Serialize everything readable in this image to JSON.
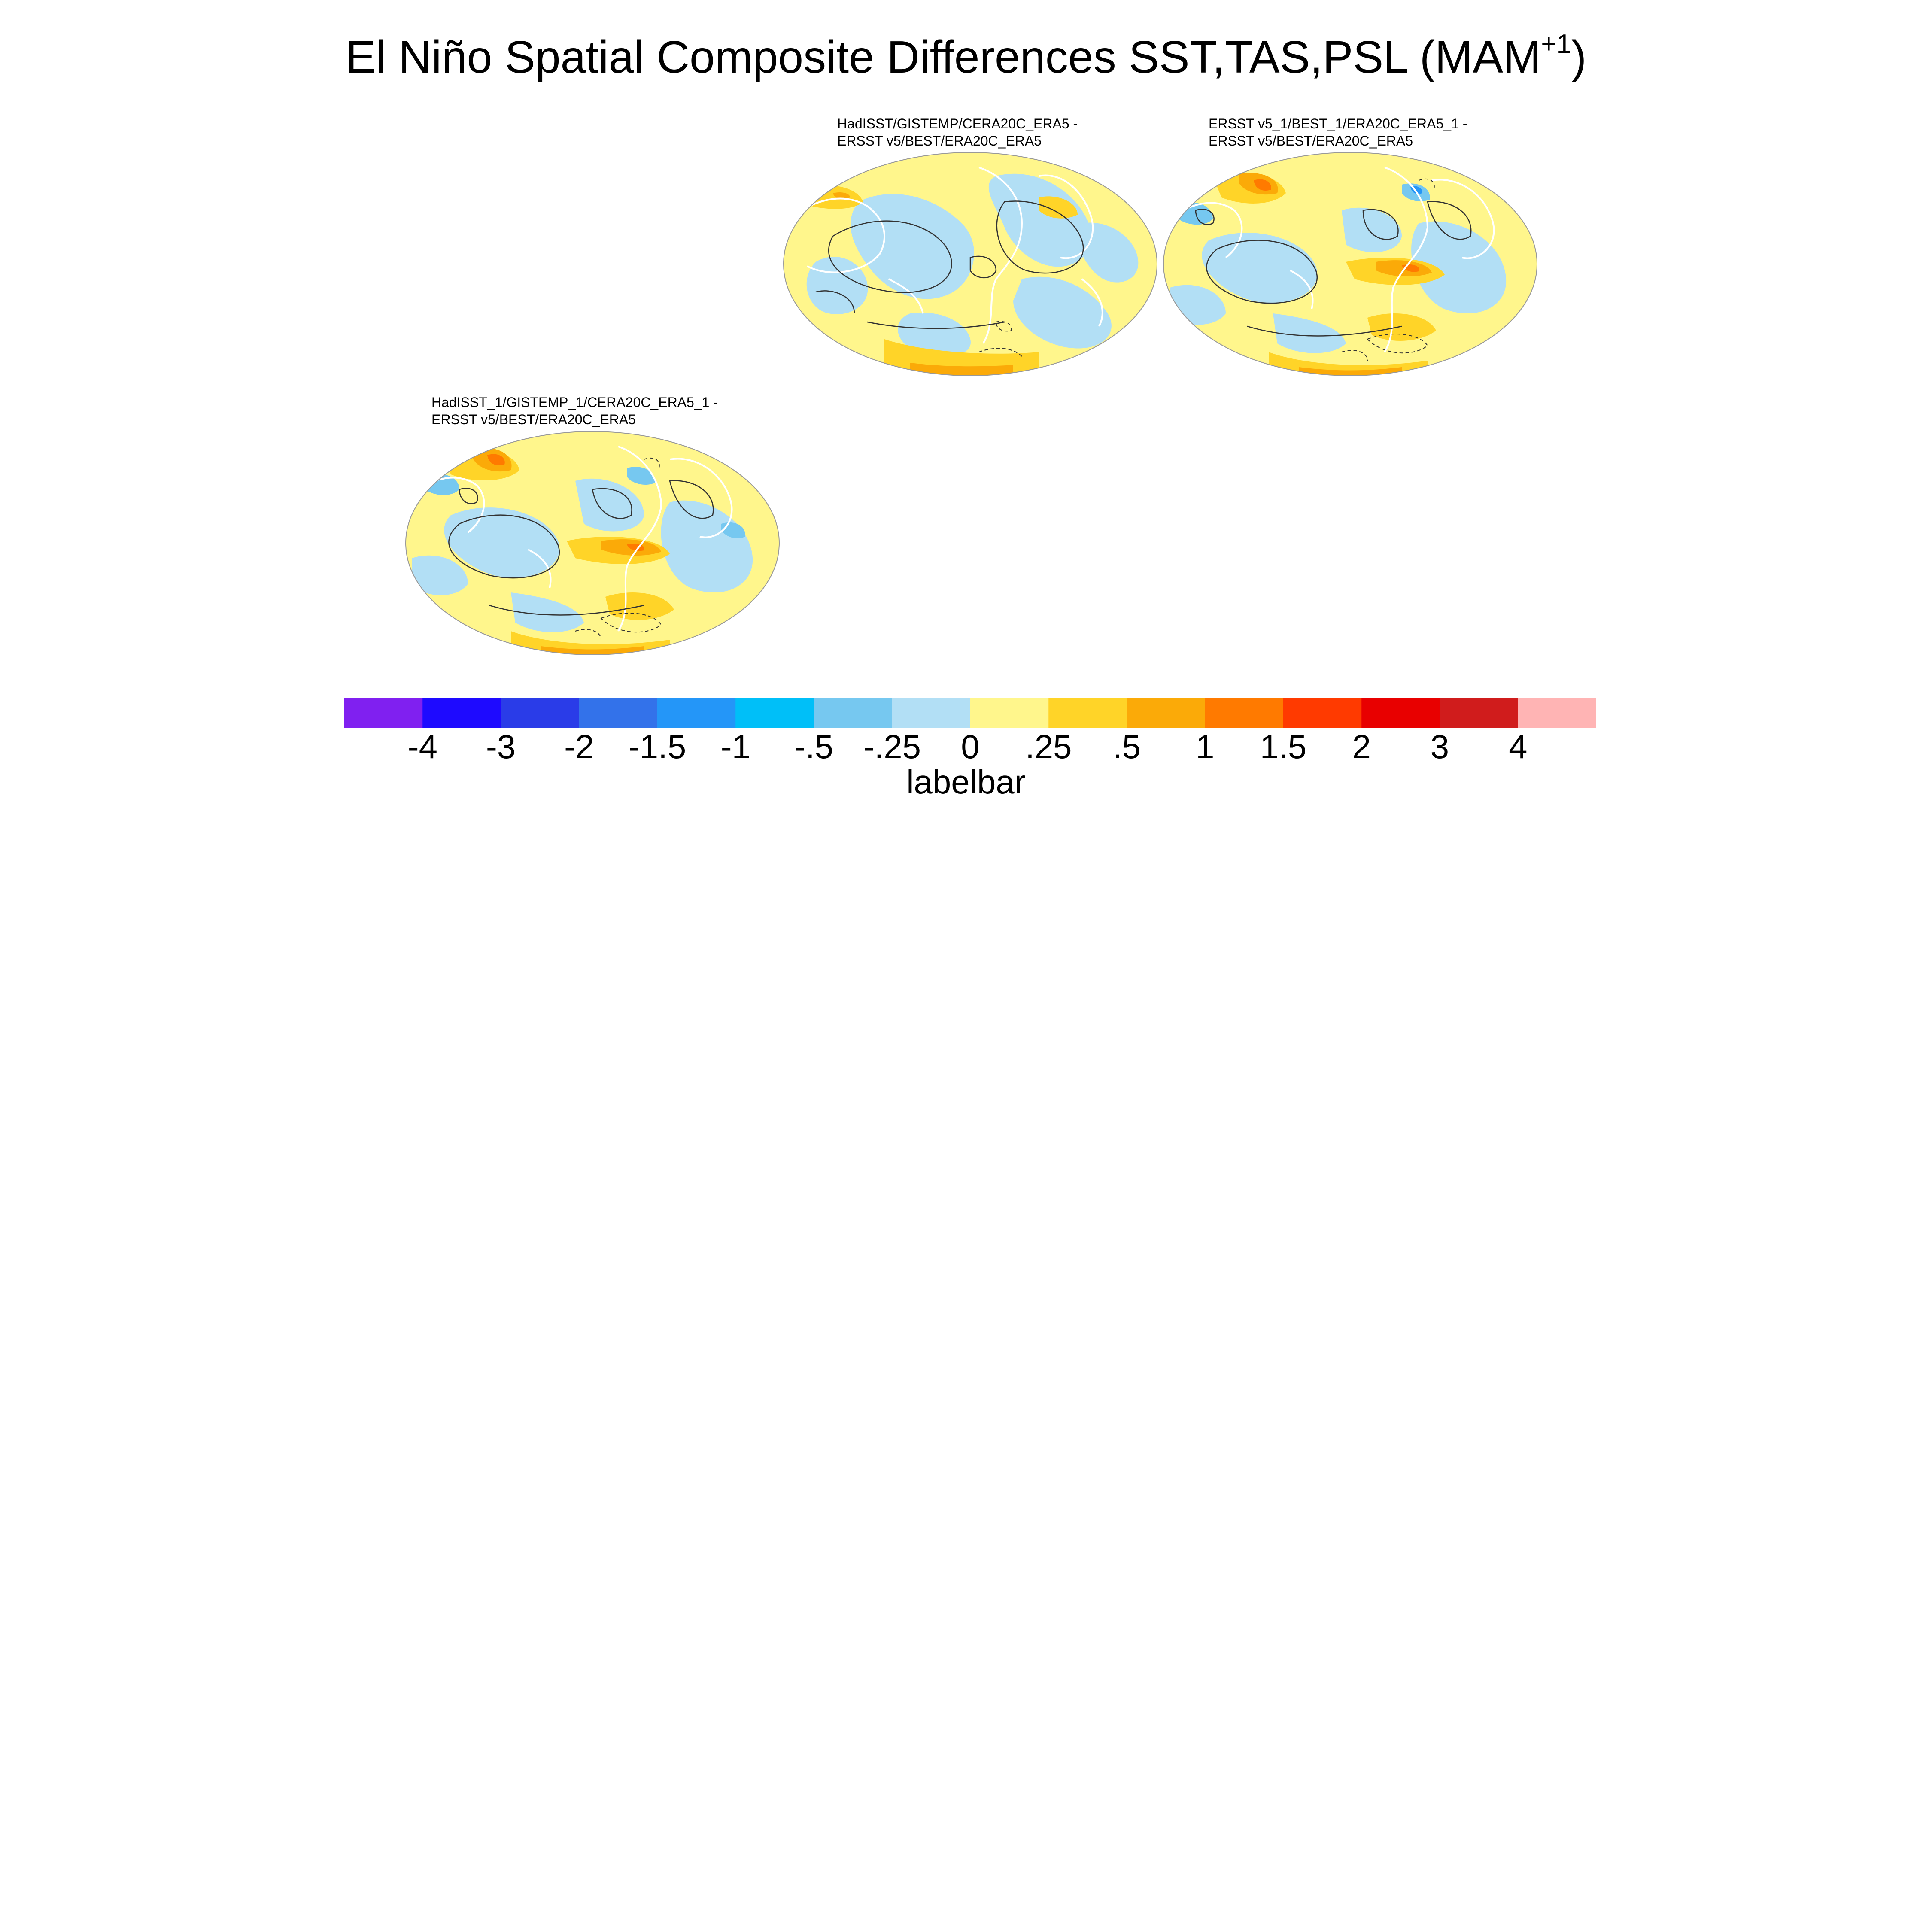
{
  "title": "El Niño Spatial Composite Differences SST,TAS,PSL (MAM",
  "title_superscript": "+1",
  "title_suffix": ")",
  "panels": [
    {
      "line1": "HadISST/GISTEMP/CERA20C_ERA5 -",
      "line2": "ERSST v5/BEST/ERA20C_ERA5"
    },
    {
      "line1": "ERSST v5_1/BEST_1/ERA20C_ERA5_1 -",
      "line2": "ERSST v5/BEST/ERA20C_ERA5"
    },
    {
      "line1": "HadISST_1/GISTEMP_1/CERA20C_ERA5_1 -",
      "line2": "ERSST v5/BEST/ERA20C_ERA5"
    }
  ],
  "labelbar": {
    "title": "labelbar",
    "colors": [
      "#8020f0",
      "#1e0aff",
      "#2a3ce8",
      "#3372ea",
      "#2496f8",
      "#00bff8",
      "#76c8f0",
      "#b2dff5",
      "#fff68c",
      "#ffd428",
      "#fbaa08",
      "#ff7a00",
      "#ff3a00",
      "#e80000",
      "#d01c1c",
      "#ffb4b4"
    ],
    "tick_labels": [
      "-4",
      "-3",
      "-2",
      "-1.5",
      "-1",
      "-.5",
      "-.25",
      "0",
      ".25",
      ".5",
      "1",
      "1.5",
      "2",
      "3",
      "4"
    ]
  },
  "map_colors": {
    "background": "#fff68c",
    "light_blue": "#b2dff5",
    "blue": "#76c8f0",
    "deep_blue": "#2496f8",
    "yellow_orange": "#ffd428",
    "orange": "#fbaa08",
    "dark_orange": "#ff7a00",
    "coast": "#ffffff",
    "contour": "#333333"
  }
}
